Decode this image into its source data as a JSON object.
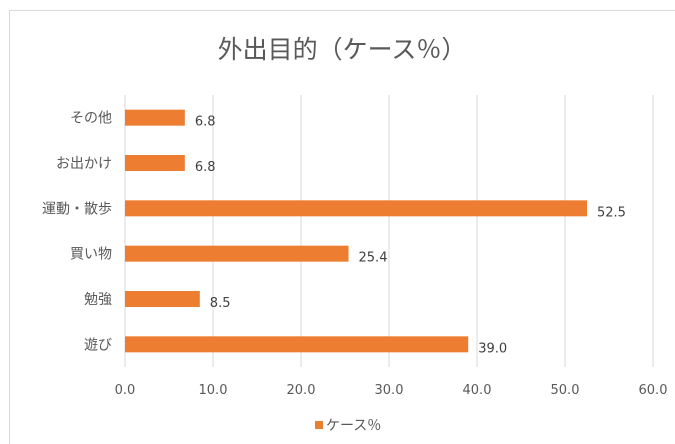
{
  "chart_data": {
    "type": "bar",
    "orientation": "horizontal",
    "title": "外出目的（ケース％）",
    "categories": [
      "その他",
      "お出かけ",
      "運動・散歩",
      "買い物",
      "勉強",
      "遊び"
    ],
    "series": [
      {
        "name": "ケース％",
        "values": [
          6.8,
          6.8,
          52.5,
          25.4,
          8.5,
          39.0
        ]
      }
    ],
    "data_labels": [
      "6.8",
      "6.8",
      "52.5",
      "25.4",
      "8.5",
      "39.0"
    ],
    "xlim": [
      0,
      60
    ],
    "xticks": [
      "0.0",
      "10.0",
      "20.0",
      "30.0",
      "40.0",
      "50.0",
      "60.0"
    ],
    "grid": "vertical",
    "legend_position": "bottom",
    "bar_color": "#ED7D31"
  }
}
